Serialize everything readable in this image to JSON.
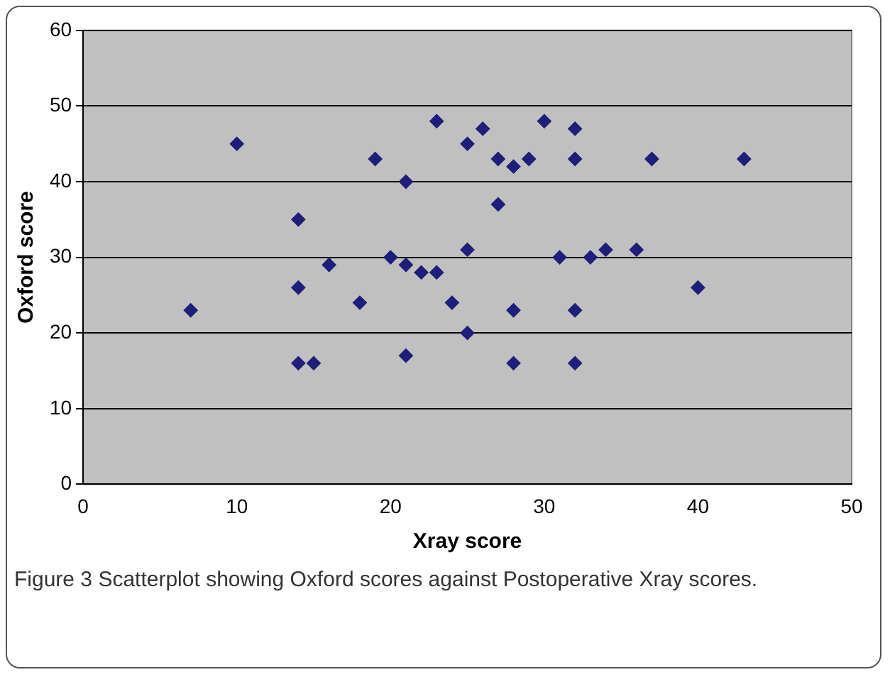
{
  "chart_data": {
    "type": "scatter",
    "xlabel": "Xray score",
    "ylabel": "Oxford score",
    "annotations": [
      "Figure 3 Scatterplot showing Oxford scores against Postoperative Xray scores."
    ],
    "x": [
      7,
      10,
      14,
      14,
      14,
      15,
      16,
      18,
      19,
      20,
      21,
      21,
      21,
      22,
      23,
      23,
      24,
      25,
      25,
      25,
      26,
      27,
      27,
      28,
      28,
      28,
      29,
      30,
      31,
      32,
      32,
      32,
      32,
      33,
      34,
      36,
      37,
      40,
      43
    ],
    "values": [
      23,
      45,
      35,
      26,
      16,
      16,
      29,
      24,
      43,
      30,
      40,
      29,
      17,
      28,
      48,
      28,
      24,
      45,
      31,
      20,
      47,
      43,
      37,
      42,
      23,
      16,
      43,
      48,
      30,
      47,
      43,
      23,
      16,
      30,
      31,
      31,
      43,
      26,
      43
    ],
    "color": "#1f1f7a",
    "marker": "diamond",
    "grid": "y",
    "legend": false,
    "xlim": [
      0,
      50
    ],
    "xticks": [
      0,
      10,
      20,
      30,
      40,
      50
    ],
    "ylim": [
      0,
      60
    ],
    "yticks": [
      0,
      10,
      20,
      30,
      40,
      50,
      60
    ]
  }
}
